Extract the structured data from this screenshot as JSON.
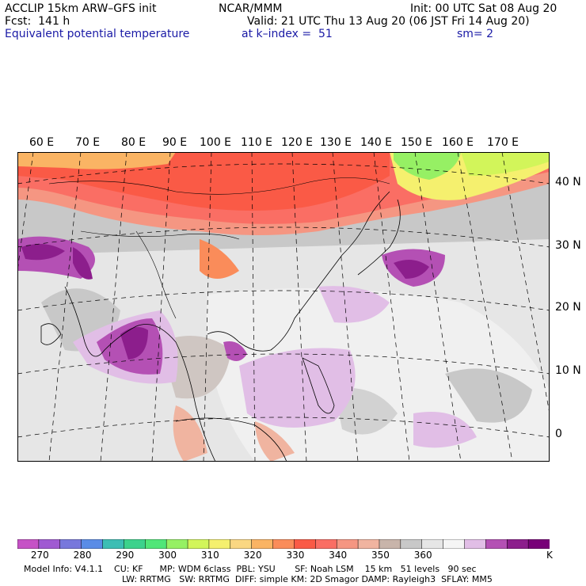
{
  "header": {
    "model": "ACCLIP 15km ARW–GFS init",
    "center": "NCAR/MMM",
    "init": "Init: 00 UTC Sat 08 Aug 20",
    "fcst": "Fcst:  141 h",
    "valid": "Valid: 21 UTC Thu 13 Aug 20 (06 JST Fri 14 Aug 20)",
    "field": "Equivalent potential temperature",
    "level": "at k–index =  51",
    "smooth": "sm= 2"
  },
  "map": {
    "lon_labels": [
      "60 E",
      "70 E",
      "80 E",
      "90 E",
      "100 E",
      "110 E",
      "120 E",
      "130 E",
      "140 E",
      "150 E",
      "160 E",
      "170 E"
    ],
    "lat_labels": [
      "40 N",
      "30 N",
      "20 N",
      "10 N",
      "0"
    ]
  },
  "colorbar": {
    "colors": [
      "#c652c6",
      "#a05ad2",
      "#7878dc",
      "#5a8ce6",
      "#3cbeb4",
      "#3cd28c",
      "#50e678",
      "#96f064",
      "#d2f55a",
      "#f5f06e",
      "#fad782",
      "#fab464",
      "#fa8c5a",
      "#fa5a46",
      "#fa6e64",
      "#f59682",
      "#f0b4a0",
      "#c8b4aa",
      "#c8c8c8",
      "#e6e6e6",
      "#f5f5f5",
      "#e1bee6",
      "#b450b4",
      "#8c1e8c",
      "#780078"
    ],
    "labels": [
      "270",
      "280",
      "290",
      "300",
      "310",
      "320",
      "330",
      "340",
      "350",
      "360",
      "K"
    ]
  },
  "footer": {
    "line1": "Model Info: V4.1.1    CU: KF      MP: WDM 6class  PBL: YSU       SF: Noah LSM    15 km   51 levels   90 sec",
    "line2": "LW: RRTMG   SW: RRTMG  DIFF: simple KM: 2D Smagor DAMP: Rayleigh3  SFLAY: MM5"
  }
}
